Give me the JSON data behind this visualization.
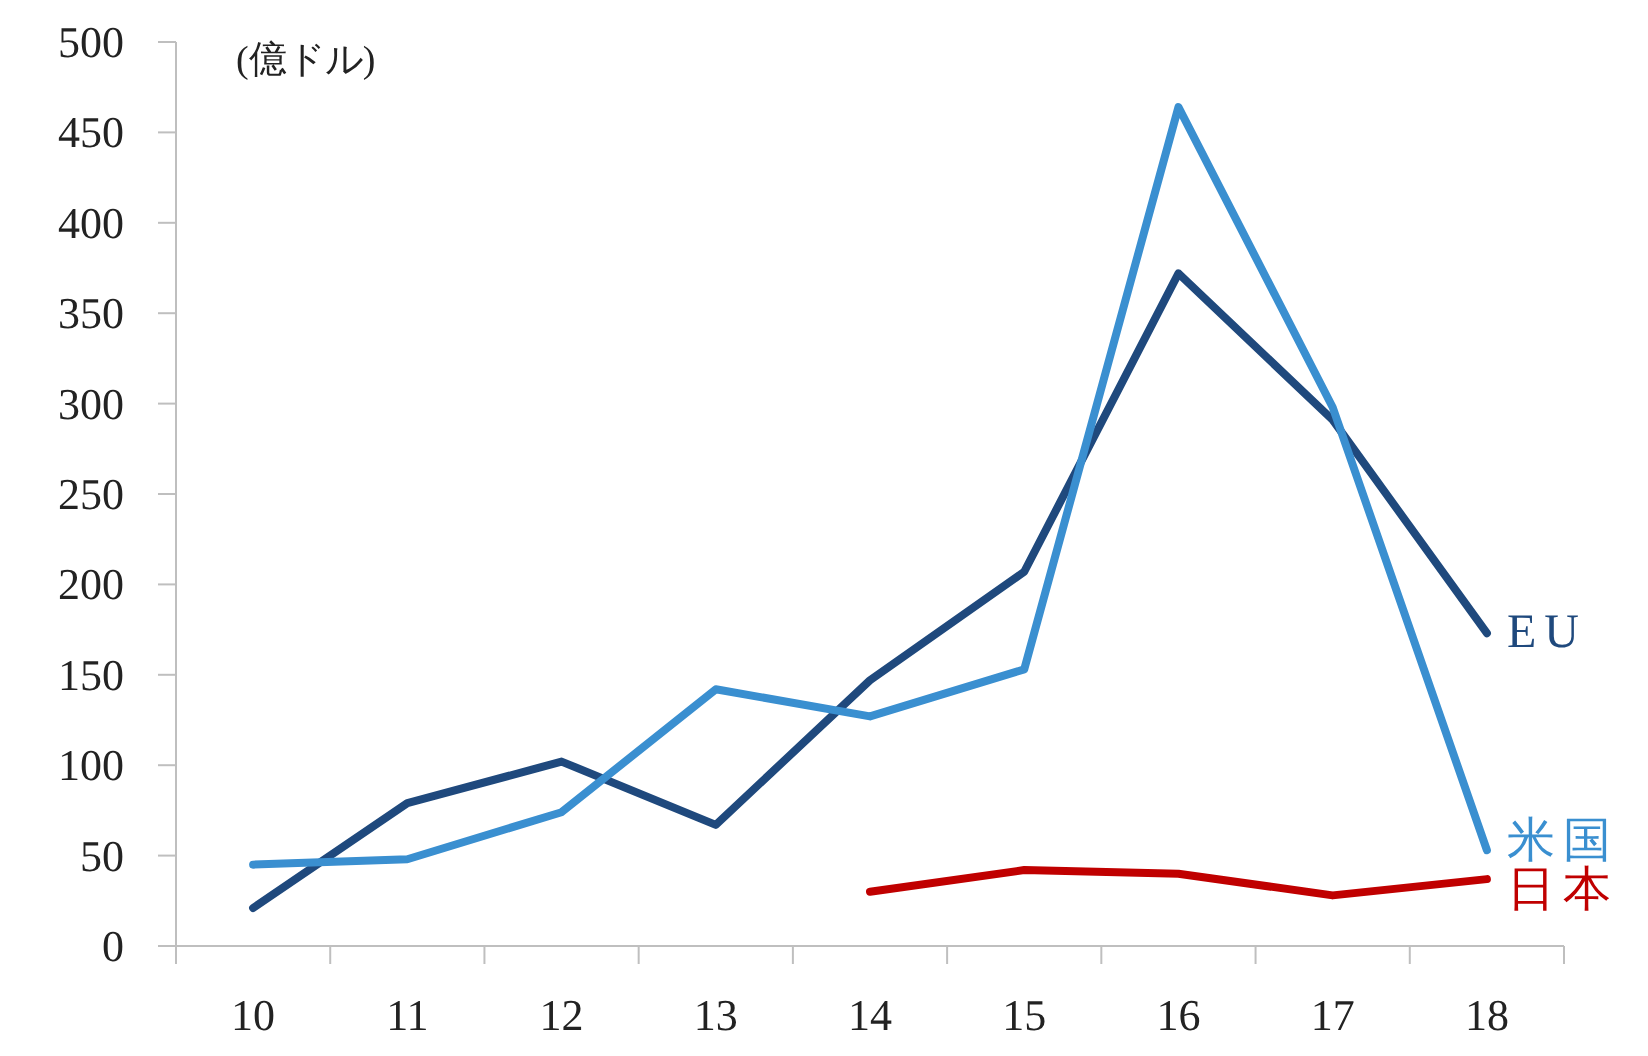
{
  "chart_data": {
    "type": "line",
    "ylabel": "(億ドル)",
    "categories": [
      "10",
      "11",
      "12",
      "13",
      "14",
      "15",
      "16",
      "17",
      "18"
    ],
    "ylim": [
      0,
      500
    ],
    "yticks": [
      0,
      50,
      100,
      150,
      200,
      250,
      300,
      350,
      400,
      450,
      500
    ],
    "grid": false,
    "legend": false,
    "series": [
      {
        "name": "EU",
        "color": "#1f497d",
        "values": [
          21,
          79,
          102,
          67,
          147,
          207,
          372,
          291,
          173
        ]
      },
      {
        "name": "米国",
        "color": "#3a8fd0",
        "values": [
          45,
          48,
          74,
          142,
          127,
          153,
          464,
          298,
          53
        ]
      },
      {
        "name": "日本",
        "color": "#c00000",
        "values": [
          null,
          null,
          null,
          null,
          30,
          42,
          40,
          28,
          37
        ]
      }
    ]
  }
}
